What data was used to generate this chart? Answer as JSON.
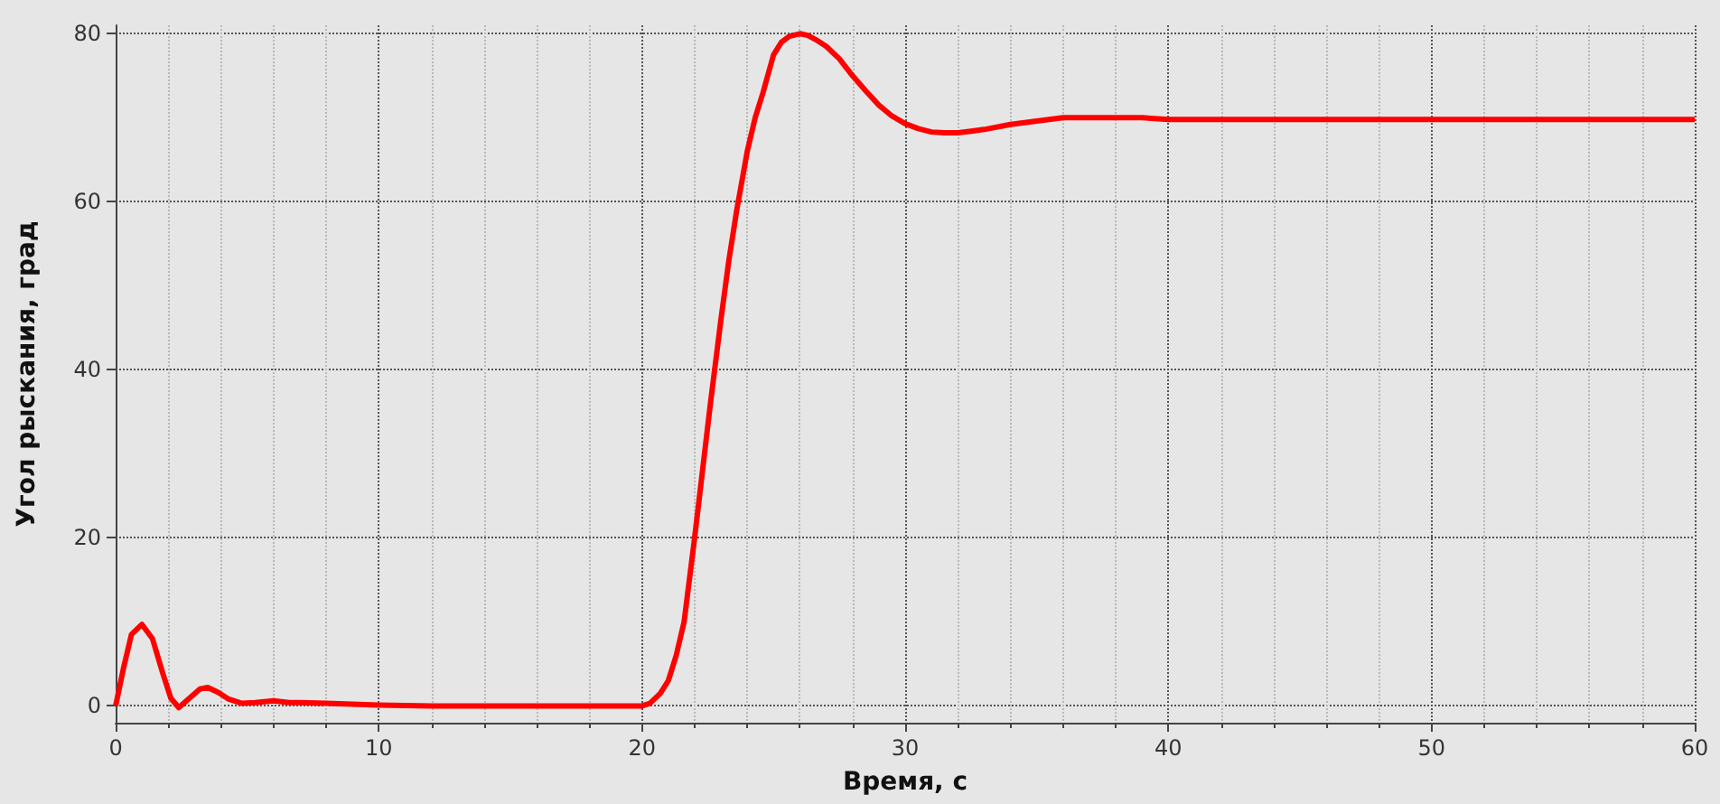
{
  "chart_data": {
    "type": "line",
    "xlabel": "Время, с",
    "ylabel": "Угол рыскания, град",
    "x": [
      0,
      0.3,
      0.6,
      1.0,
      1.4,
      1.8,
      2.1,
      2.4,
      2.8,
      3.2,
      3.5,
      3.9,
      4.3,
      4.8,
      5.3,
      6.0,
      6.6,
      7.0,
      8,
      9,
      10,
      12,
      15,
      18,
      20,
      20.3,
      20.7,
      21,
      21.3,
      21.6,
      22,
      22.3,
      22.6,
      23,
      23.3,
      23.6,
      24,
      24.3,
      24.6,
      25,
      25.3,
      25.6,
      26,
      26.3,
      26.6,
      27,
      27.5,
      28,
      28.5,
      29,
      29.5,
      30,
      30.5,
      31,
      31.5,
      32,
      32.5,
      33,
      34,
      35,
      36,
      37,
      38,
      39,
      40,
      45,
      50,
      55,
      60
    ],
    "series": [
      {
        "color": "#ff0000",
        "values": [
          0,
          4.5,
          8.5,
          9.7,
          8,
          3.8,
          0.9,
          -0.2,
          0.9,
          2,
          2.2,
          1.6,
          0.8,
          0.3,
          0.4,
          0.6,
          0.4,
          0.4,
          0.3,
          0.2,
          0.1,
          0,
          0,
          0,
          0,
          0.3,
          1.5,
          3,
          6,
          10,
          20,
          28,
          36,
          46,
          53,
          59,
          66,
          70,
          73,
          77.5,
          79,
          79.7,
          80,
          79.8,
          79.3,
          78.5,
          77,
          75,
          73.2,
          71.5,
          70.2,
          69.3,
          68.7,
          68.3,
          68.2,
          68.2,
          68.4,
          68.6,
          69.2,
          69.6,
          70,
          70,
          70,
          70,
          69.8,
          69.8,
          69.8,
          69.8,
          69.8
        ]
      }
    ],
    "xlim": [
      0,
      60
    ],
    "xticks": [
      0,
      10,
      20,
      30,
      40,
      50,
      60
    ],
    "ylim": [
      -2,
      81
    ],
    "yticks": [
      0,
      20,
      40,
      60,
      80
    ],
    "grid": true,
    "marker": "none",
    "line_style": "solid"
  }
}
